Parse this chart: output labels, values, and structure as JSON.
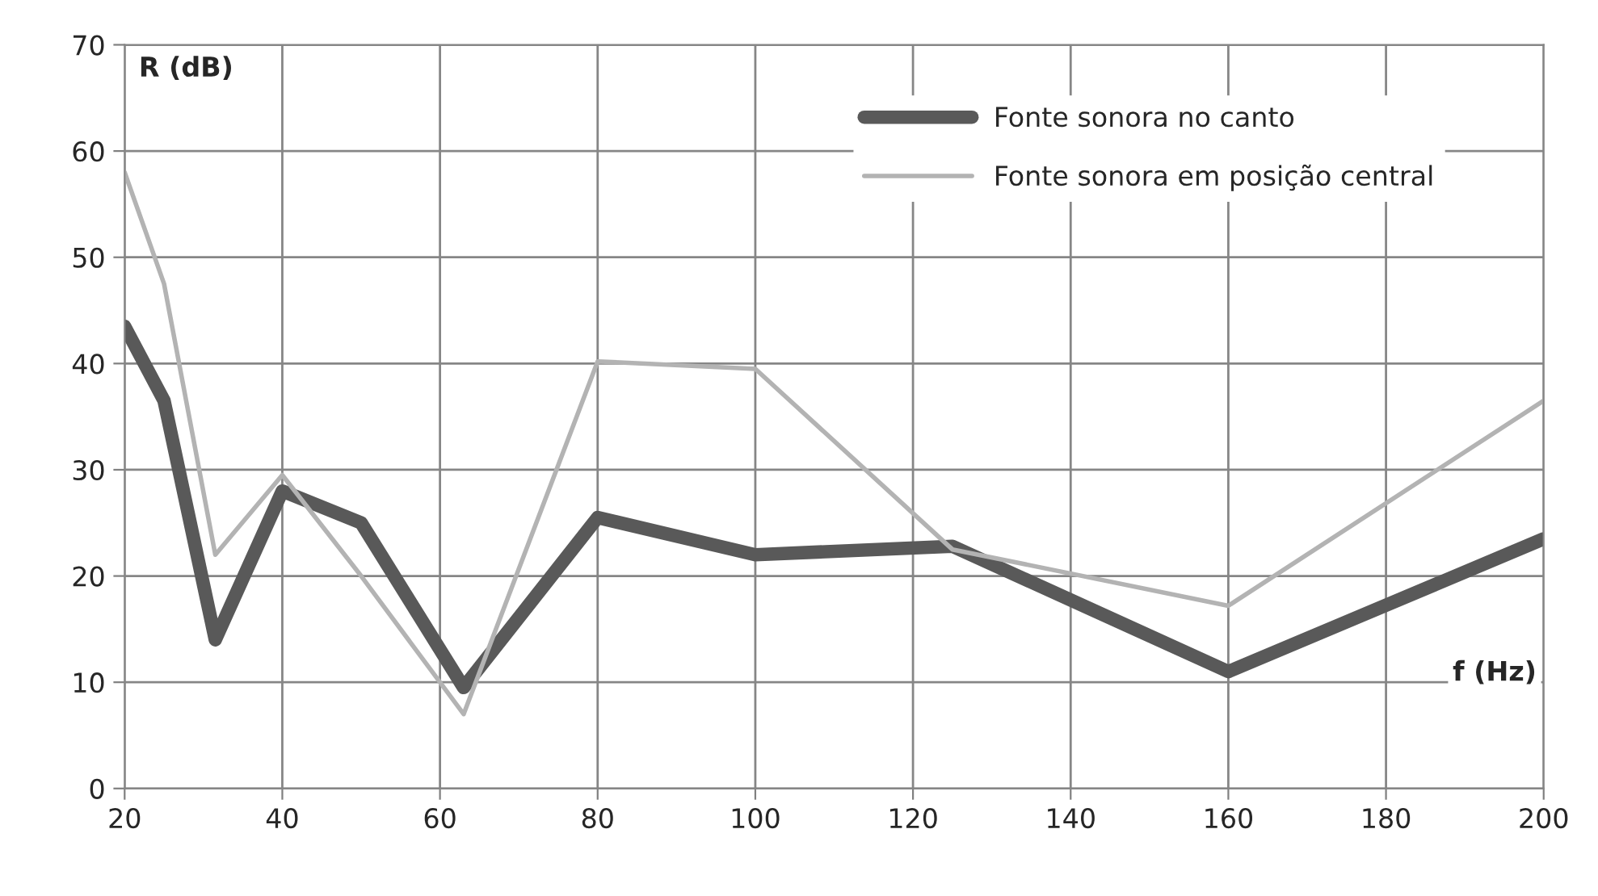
{
  "chart_data": {
    "type": "line",
    "xlabel": "f (Hz)",
    "ylabel": "R (dB)",
    "x": [
      20,
      25,
      31.5,
      40,
      50,
      63,
      80,
      100,
      125,
      160,
      200
    ],
    "series": [
      {
        "name": "Fonte sonora no canto",
        "color": "#595959",
        "values": [
          43.5,
          36.5,
          14,
          28,
          25,
          9.5,
          25.5,
          22,
          22.8,
          11,
          23.5
        ]
      },
      {
        "name": "Fonte sonora em posição central",
        "color": "#b3b3b3",
        "values": [
          58,
          47.5,
          22,
          29.5,
          20,
          7,
          40.2,
          39.5,
          22.5,
          17.2,
          36.5
        ]
      }
    ],
    "xlim": [
      20,
      200
    ],
    "xticks": [
      20,
      40,
      60,
      80,
      100,
      120,
      140,
      160,
      180,
      200
    ],
    "ylim": [
      0,
      70
    ],
    "yticks": [
      0,
      10,
      20,
      30,
      40,
      50,
      60,
      70
    ],
    "grid": true,
    "legend": "top right",
    "marker": "none",
    "line_style": "solid"
  }
}
